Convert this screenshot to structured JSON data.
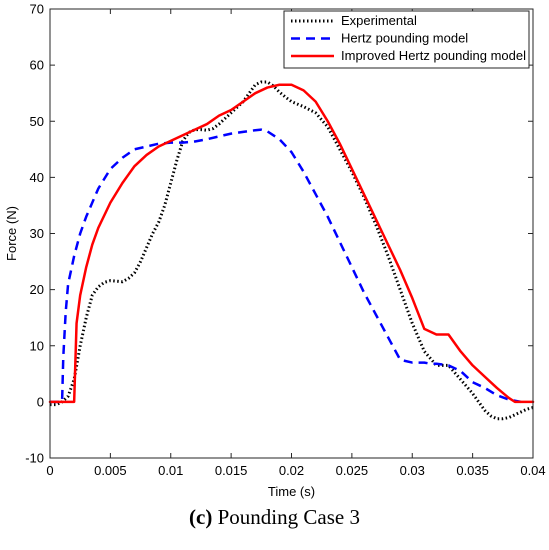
{
  "chart_data": {
    "type": "line",
    "xlabel": "Time (s)",
    "ylabel": "Force (N)",
    "xlim": [
      0,
      0.04
    ],
    "ylim": [
      -10,
      70
    ],
    "xticks": [
      0,
      0.005,
      0.01,
      0.015,
      0.02,
      0.025,
      0.03,
      0.035,
      0.04
    ],
    "xtick_labels": [
      "0",
      "0.005",
      "0.01",
      "0.015",
      "0.02",
      "0.025",
      "0.03",
      "0.035",
      "0.04"
    ],
    "yticks": [
      -10,
      0,
      10,
      20,
      30,
      40,
      50,
      60,
      70
    ],
    "ytick_labels": [
      "-10",
      "0",
      "10",
      "20",
      "30",
      "40",
      "50",
      "60",
      "70"
    ],
    "grid": false,
    "legend_position": "top-right",
    "series": [
      {
        "name": "Experimental",
        "color": "#000000",
        "style": "dotted",
        "x": [
          0,
          0.0005,
          0.001,
          0.0015,
          0.002,
          0.0025,
          0.003,
          0.0035,
          0.004,
          0.0045,
          0.005,
          0.0055,
          0.006,
          0.0065,
          0.007,
          0.0075,
          0.008,
          0.0085,
          0.009,
          0.0095,
          0.01,
          0.0105,
          0.011,
          0.0115,
          0.012,
          0.0125,
          0.013,
          0.0135,
          0.014,
          0.0145,
          0.015,
          0.0155,
          0.016,
          0.0165,
          0.017,
          0.0175,
          0.018,
          0.0185,
          0.019,
          0.0195,
          0.02,
          0.021,
          0.022,
          0.023,
          0.024,
          0.025,
          0.026,
          0.027,
          0.028,
          0.029,
          0.03,
          0.031,
          0.032,
          0.033,
          0.034,
          0.035,
          0.0355,
          0.036,
          0.0365,
          0.037,
          0.0375,
          0.038,
          0.0385,
          0.039,
          0.0395,
          0.04
        ],
        "y": [
          -0.5,
          -0.5,
          0,
          1,
          4,
          10,
          15,
          19,
          20.5,
          21.3,
          21.6,
          21.5,
          21.4,
          22,
          23,
          25,
          27.5,
          30,
          32,
          35,
          39,
          43,
          46.5,
          48,
          48.5,
          48.5,
          48.4,
          48.7,
          49.5,
          50.5,
          51.5,
          52.5,
          53.5,
          55,
          56.5,
          57,
          57,
          56.3,
          55.2,
          54.3,
          53.5,
          52.6,
          51.5,
          49,
          45,
          41,
          36.5,
          31.5,
          26,
          20,
          14,
          9,
          6.5,
          6.5,
          4,
          1.5,
          0,
          -1.5,
          -2.5,
          -3,
          -3,
          -2.8,
          -2.3,
          -1.8,
          -1.3,
          -1
        ]
      },
      {
        "name": "Hertz pounding model",
        "color": "#0000ff",
        "style": "dashed",
        "x": [
          0,
          0.001,
          0.0011,
          0.0013,
          0.0015,
          0.002,
          0.0025,
          0.003,
          0.004,
          0.005,
          0.006,
          0.007,
          0.008,
          0.009,
          0.01,
          0.011,
          0.012,
          0.013,
          0.014,
          0.015,
          0.016,
          0.017,
          0.0175,
          0.018,
          0.019,
          0.02,
          0.021,
          0.022,
          0.023,
          0.024,
          0.025,
          0.026,
          0.027,
          0.028,
          0.029,
          0.03,
          0.031,
          0.0315,
          0.032,
          0.033,
          0.034,
          0.035,
          0.036,
          0.037,
          0.038,
          0.039
        ],
        "y": [
          0,
          0,
          8,
          16,
          21,
          26,
          30,
          33,
          38,
          41.5,
          43.5,
          45,
          45.5,
          46,
          46.2,
          46.2,
          46.4,
          46.8,
          47.3,
          47.8,
          48.1,
          48.4,
          48.5,
          48.2,
          46.8,
          44.5,
          41,
          37,
          33,
          28.5,
          24,
          19.5,
          15.5,
          11.5,
          7.5,
          7,
          7,
          6.8,
          6.8,
          6.5,
          5.5,
          3.5,
          2.5,
          1.2,
          0.4,
          0
        ]
      },
      {
        "name": "Improved Hertz pounding model",
        "color": "#ff0000",
        "style": "solid",
        "x": [
          0,
          0.002,
          0.0021,
          0.0022,
          0.0025,
          0.003,
          0.0035,
          0.004,
          0.005,
          0.006,
          0.007,
          0.008,
          0.009,
          0.01,
          0.011,
          0.012,
          0.013,
          0.014,
          0.015,
          0.016,
          0.017,
          0.018,
          0.019,
          0.02,
          0.021,
          0.022,
          0.023,
          0.024,
          0.025,
          0.026,
          0.027,
          0.028,
          0.029,
          0.03,
          0.031,
          0.032,
          0.033,
          0.034,
          0.035,
          0.036,
          0.037,
          0.038,
          0.0385,
          0.039,
          0.04
        ],
        "y": [
          0,
          0,
          7,
          14,
          19,
          24,
          28,
          31,
          35.5,
          39,
          42,
          44,
          45.5,
          46.5,
          47.5,
          48.5,
          49.5,
          51,
          52,
          53.5,
          55,
          56,
          56.5,
          56.5,
          55.5,
          53.5,
          50,
          46,
          41.5,
          37,
          32.5,
          28,
          23.5,
          18.5,
          13,
          12,
          12,
          9,
          6.5,
          4.5,
          2.5,
          0.7,
          0,
          0,
          0
        ]
      }
    ]
  },
  "caption": {
    "label": "(c)",
    "text": " Pounding Case 3"
  }
}
